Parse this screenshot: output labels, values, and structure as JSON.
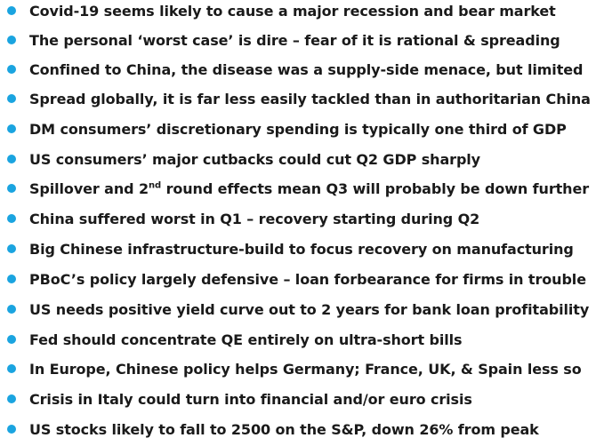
{
  "accent_color": "#1aa4e0",
  "bullets": [
    {
      "text": "Covid-19 seems likely to cause a major recession and bear market"
    },
    {
      "text": "The personal ‘worst case’ is dire – fear of it is rational & spreading"
    },
    {
      "text": "Confined to China, the disease was a supply-side menace, but limited"
    },
    {
      "text": "Spread globally, it is far less easily tackled than in authoritarian China"
    },
    {
      "text": "DM consumers’ discretionary spending is typically one third of GDP"
    },
    {
      "text": "US consumers’ major cutbacks could cut Q2 GDP sharply"
    },
    {
      "pre": "Spillover and 2",
      "sup": "nd",
      "post": " round effects mean Q3 will probably be down further"
    },
    {
      "text": "China suffered worst in Q1 –  recovery starting during Q2"
    },
    {
      "text": "Big Chinese infrastructure-build to focus recovery on manufacturing"
    },
    {
      "text": "PBoC’s policy largely defensive – loan forbearance for firms in trouble"
    },
    {
      "text": "US needs positive yield curve out to 2 years for bank loan profitability"
    },
    {
      "text": "Fed should concentrate QE entirely on ultra-short bills"
    },
    {
      "text": "In Europe, Chinese policy helps Germany; France, UK, & Spain less so"
    },
    {
      "text": "Crisis in Italy could turn into financial and/or euro crisis"
    },
    {
      "text": "US stocks likely to fall to 2500 on the S&P, down 26% from peak"
    }
  ]
}
